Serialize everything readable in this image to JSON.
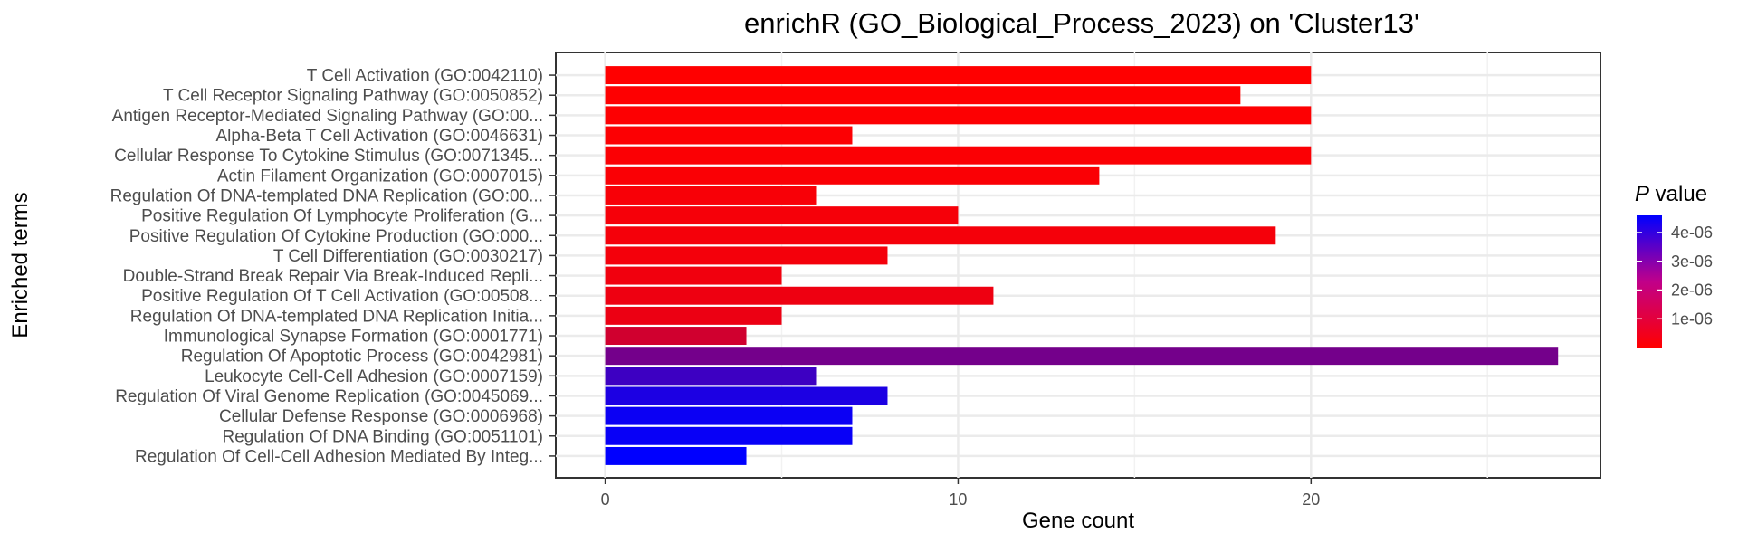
{
  "chart_data": {
    "type": "bar",
    "orientation": "horizontal",
    "title": "enrichR (GO_Biological_Process_2023) on 'Cluster13'",
    "xlabel": "Gene count",
    "ylabel": "Enriched terms",
    "xlim": [
      -1.4,
      28.2
    ],
    "xticks": [
      0,
      10,
      20
    ],
    "grid": true,
    "legend": {
      "title_italic": "P",
      "title_rest": " value",
      "placement": "right",
      "range": [
        1e-09,
        4.6e-06
      ],
      "ticks": [
        {
          "value": 1e-06,
          "label": "1e-06"
        },
        {
          "value": 2e-06,
          "label": "2e-06"
        },
        {
          "value": 3e-06,
          "label": "3e-06"
        },
        {
          "value": 4e-06,
          "label": "4e-06"
        }
      ],
      "low_color": "#ff0000",
      "high_color": "#0000ff"
    },
    "categories": [
      "T Cell Activation (GO:0042110)",
      "T Cell Receptor Signaling Pathway (GO:0050852)",
      "Antigen Receptor-Mediated Signaling Pathway (GO:00...",
      "Alpha-Beta T Cell Activation (GO:0046631)",
      "Cellular Response To Cytokine Stimulus (GO:0071345...",
      "Actin Filament Organization (GO:0007015)",
      "Regulation Of DNA-templated DNA Replication (GO:00...",
      "Positive Regulation Of Lymphocyte Proliferation (G...",
      "Positive Regulation Of Cytokine Production (GO:000...",
      "T Cell Differentiation (GO:0030217)",
      "Double-Strand Break Repair Via Break-Induced Repli...",
      "Positive Regulation Of T Cell Activation (GO:00508...",
      "Regulation Of DNA-templated DNA Replication Initia...",
      "Immunological Synapse Formation (GO:0001771)",
      "Regulation Of Apoptotic Process (GO:0042981)",
      "Leukocyte Cell-Cell Adhesion (GO:0007159)",
      "Regulation Of Viral Genome Replication (GO:0045069...",
      "Cellular Defense Response (GO:0006968)",
      "Regulation Of DNA Binding (GO:0051101)",
      "Regulation Of Cell-Cell Adhesion Mediated By Integ..."
    ],
    "values": [
      20,
      18,
      20,
      7,
      20,
      14,
      6,
      10,
      19,
      8,
      5,
      11,
      5,
      4,
      27,
      6,
      8,
      7,
      7,
      4
    ],
    "p_values": [
      1e-09,
      2e-08,
      3e-08,
      5e-08,
      7e-08,
      1e-07,
      1.3e-07,
      1.6e-07,
      1.8e-07,
      2e-07,
      2.5e-07,
      3e-07,
      3.5e-07,
      8.5e-07,
      2.5e-06,
      3.5e-06,
      4.1e-06,
      4.4e-06,
      4.45e-06,
      4.6e-06
    ]
  }
}
